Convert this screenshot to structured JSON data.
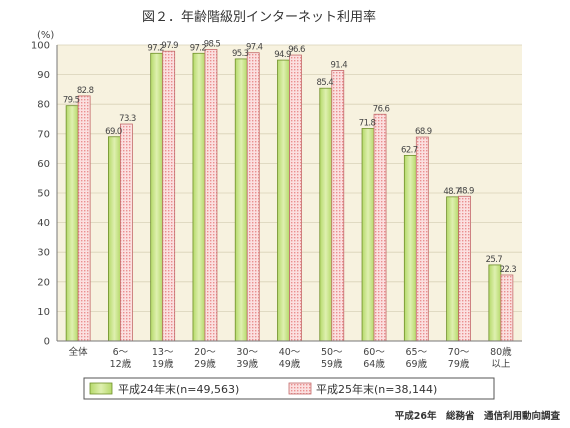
{
  "chart_data": {
    "type": "bar",
    "title": "図２．年齢階級別インターネット利用率",
    "ylabel": "(%)",
    "ylim": [
      0,
      100
    ],
    "yticks": [
      0,
      10,
      20,
      30,
      40,
      50,
      60,
      70,
      80,
      90,
      100
    ],
    "grid": true,
    "legend_position": "bottom",
    "categories": [
      [
        "全体"
      ],
      [
        "6～",
        "12歳"
      ],
      [
        "13～",
        "19歳"
      ],
      [
        "20～",
        "29歳"
      ],
      [
        "30～",
        "39歳"
      ],
      [
        "40～",
        "49歳"
      ],
      [
        "50～",
        "59歳"
      ],
      [
        "60～",
        "64歳"
      ],
      [
        "65～",
        "69歳"
      ],
      [
        "70～",
        "79歳"
      ],
      [
        "80歳",
        "以上"
      ]
    ],
    "series": [
      {
        "name": "平成24年末(n=49,563)",
        "color": "#c8e68a",
        "values": [
          79.5,
          69.0,
          97.2,
          97.2,
          95.3,
          94.9,
          85.4,
          71.8,
          62.7,
          48.7,
          25.7
        ]
      },
      {
        "name": "平成25年末(n=38,144)",
        "color": "#f7caca",
        "values": [
          82.8,
          73.3,
          97.9,
          98.5,
          97.4,
          96.6,
          91.4,
          76.6,
          68.9,
          48.9,
          22.3
        ]
      }
    ],
    "data_labels": [
      [
        "79.5",
        "69.0",
        "97.2",
        "97.2",
        "95.3",
        "94.9",
        "85.4",
        "71.8",
        "62.7",
        "48.7",
        "25.7"
      ],
      [
        "82.8",
        "73.3",
        "97.9",
        "98.5",
        "97.4",
        "96.6",
        "91.4",
        "76.6",
        "68.9",
        "48.9",
        "22.3"
      ]
    ],
    "source": "平成26年　総務省　通信利用動向調査"
  }
}
